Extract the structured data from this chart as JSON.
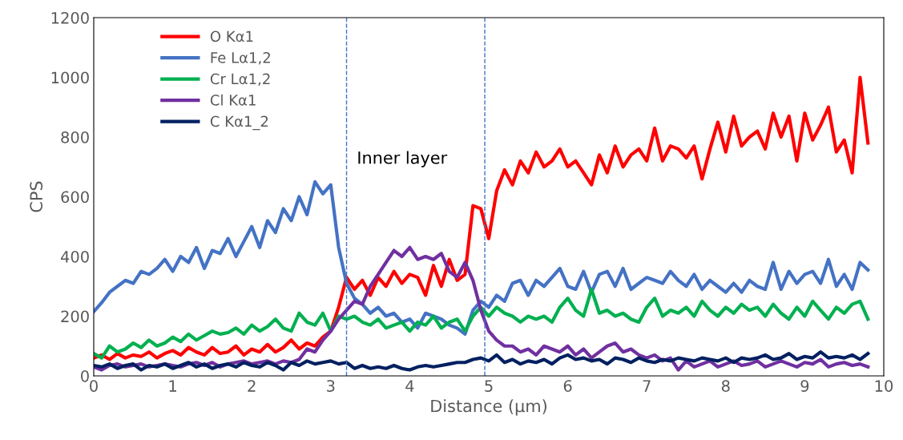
{
  "chart_data": {
    "type": "line",
    "xlabel": "Distance (μm)",
    "ylabel": "CPS",
    "x": [
      0,
      0.1,
      0.2,
      0.3,
      0.4,
      0.5,
      0.6,
      0.7,
      0.8,
      0.9,
      1.0,
      1.1,
      1.2,
      1.3,
      1.4,
      1.5,
      1.6,
      1.7,
      1.8,
      1.9,
      2.0,
      2.1,
      2.2,
      2.3,
      2.4,
      2.5,
      2.6,
      2.7,
      2.8,
      2.9,
      3.0,
      3.1,
      3.2,
      3.3,
      3.4,
      3.5,
      3.6,
      3.7,
      3.8,
      3.9,
      4.0,
      4.1,
      4.2,
      4.3,
      4.4,
      4.5,
      4.6,
      4.7,
      4.8,
      4.9,
      5.0,
      5.1,
      5.2,
      5.3,
      5.4,
      5.5,
      5.6,
      5.7,
      5.8,
      5.9,
      6.0,
      6.1,
      6.2,
      6.3,
      6.4,
      6.5,
      6.6,
      6.7,
      6.8,
      6.9,
      7.0,
      7.1,
      7.2,
      7.3,
      7.4,
      7.5,
      7.6,
      7.7,
      7.8,
      7.9,
      8.0,
      8.1,
      8.2,
      8.3,
      8.4,
      8.5,
      8.6,
      8.7,
      8.8,
      8.9,
      9.0,
      9.1,
      9.2,
      9.3,
      9.4,
      9.5,
      9.6,
      9.7,
      9.8
    ],
    "series": [
      {
        "name": "O Kα1",
        "color": "#ff0000",
        "values": [
          60,
          70,
          55,
          75,
          60,
          70,
          65,
          80,
          60,
          75,
          85,
          70,
          95,
          80,
          70,
          95,
          75,
          80,
          100,
          70,
          90,
          80,
          105,
          80,
          95,
          120,
          90,
          110,
          100,
          130,
          150,
          230,
          330,
          290,
          320,
          270,
          330,
          300,
          350,
          310,
          340,
          330,
          270,
          370,
          300,
          390,
          320,
          340,
          570,
          560,
          460,
          620,
          690,
          640,
          720,
          680,
          750,
          700,
          720,
          760,
          700,
          720,
          680,
          640,
          740,
          680,
          770,
          700,
          740,
          760,
          720,
          830,
          720,
          770,
          760,
          730,
          770,
          660,
          760,
          850,
          750,
          870,
          770,
          800,
          820,
          760,
          880,
          800,
          870,
          720,
          880,
          790,
          840,
          900,
          750,
          790,
          680,
          1000,
          780
        ]
      },
      {
        "name": "Fe Lα1,2",
        "color": "#4472c4",
        "values": [
          215,
          245,
          280,
          300,
          320,
          310,
          350,
          340,
          360,
          390,
          350,
          400,
          380,
          430,
          360,
          420,
          410,
          460,
          400,
          450,
          500,
          430,
          520,
          480,
          560,
          520,
          600,
          540,
          650,
          610,
          640,
          430,
          310,
          260,
          240,
          210,
          230,
          200,
          210,
          180,
          190,
          160,
          210,
          200,
          190,
          170,
          160,
          140,
          220,
          250,
          230,
          270,
          250,
          310,
          320,
          270,
          320,
          300,
          330,
          360,
          300,
          290,
          350,
          280,
          340,
          350,
          300,
          360,
          290,
          310,
          330,
          320,
          310,
          350,
          320,
          300,
          340,
          290,
          320,
          300,
          280,
          310,
          280,
          320,
          300,
          290,
          380,
          290,
          350,
          310,
          340,
          350,
          310,
          390,
          300,
          340,
          290,
          380,
          355
        ]
      },
      {
        "name": "Cr Lα1,2",
        "color": "#00b050",
        "values": [
          75,
          60,
          100,
          80,
          90,
          110,
          95,
          120,
          100,
          110,
          130,
          115,
          140,
          120,
          135,
          150,
          140,
          145,
          160,
          140,
          170,
          150,
          165,
          190,
          160,
          150,
          210,
          180,
          170,
          210,
          150,
          200,
          190,
          200,
          180,
          170,
          190,
          160,
          170,
          180,
          150,
          180,
          170,
          200,
          160,
          180,
          190,
          150,
          200,
          230,
          200,
          230,
          210,
          200,
          180,
          200,
          190,
          200,
          180,
          230,
          260,
          220,
          200,
          290,
          210,
          220,
          200,
          210,
          190,
          180,
          230,
          260,
          200,
          220,
          210,
          230,
          200,
          250,
          220,
          200,
          230,
          210,
          240,
          220,
          230,
          200,
          240,
          210,
          190,
          230,
          200,
          250,
          220,
          190,
          230,
          210,
          240,
          250,
          190
        ]
      },
      {
        "name": "Cl Kα1",
        "color": "#7030a0",
        "values": [
          30,
          20,
          35,
          40,
          30,
          35,
          40,
          30,
          35,
          40,
          35,
          30,
          40,
          45,
          35,
          45,
          30,
          40,
          45,
          50,
          40,
          45,
          50,
          40,
          50,
          45,
          55,
          90,
          80,
          120,
          150,
          190,
          220,
          250,
          240,
          300,
          340,
          380,
          420,
          400,
          430,
          390,
          400,
          390,
          410,
          350,
          330,
          380,
          320,
          220,
          150,
          120,
          100,
          100,
          80,
          90,
          70,
          100,
          90,
          80,
          100,
          70,
          90,
          60,
          80,
          100,
          110,
          80,
          90,
          70,
          60,
          70,
          50,
          60,
          20,
          50,
          30,
          40,
          50,
          30,
          40,
          50,
          35,
          40,
          50,
          30,
          40,
          50,
          40,
          30,
          45,
          40,
          55,
          30,
          40,
          45,
          35,
          40,
          30
        ]
      },
      {
        "name": "C Kα1_2",
        "color": "#002060",
        "values": [
          35,
          30,
          40,
          25,
          35,
          40,
          20,
          35,
          30,
          40,
          25,
          35,
          45,
          30,
          40,
          25,
          35,
          40,
          30,
          45,
          35,
          30,
          45,
          35,
          20,
          45,
          35,
          50,
          40,
          45,
          50,
          40,
          45,
          25,
          35,
          25,
          30,
          25,
          35,
          25,
          20,
          30,
          35,
          30,
          35,
          40,
          45,
          45,
          55,
          60,
          50,
          70,
          45,
          55,
          40,
          50,
          45,
          55,
          40,
          60,
          70,
          55,
          60,
          50,
          55,
          40,
          60,
          55,
          45,
          60,
          50,
          45,
          55,
          50,
          60,
          55,
          50,
          60,
          55,
          50,
          60,
          45,
          60,
          55,
          60,
          70,
          55,
          60,
          75,
          55,
          65,
          60,
          80,
          60,
          65,
          60,
          70,
          55,
          75
        ]
      }
    ],
    "xlim": [
      0,
      10
    ],
    "xticks": [
      0,
      1,
      2,
      3,
      4,
      5,
      6,
      7,
      8,
      9,
      10
    ],
    "ylim": [
      0,
      1200
    ],
    "yticks": [
      0,
      200,
      400,
      600,
      800,
      1000,
      1200
    ],
    "ref_lines": [
      {
        "axis": "x",
        "value": 3.2,
        "color": "#4472c4",
        "line_style": "dashed"
      },
      {
        "axis": "x",
        "value": 4.95,
        "color": "#4472c4",
        "line_style": "dashed"
      }
    ],
    "annotations": [
      "Inner layer"
    ],
    "legend": "top left",
    "grid": false,
    "line_style": "solid",
    "marker": "none"
  }
}
